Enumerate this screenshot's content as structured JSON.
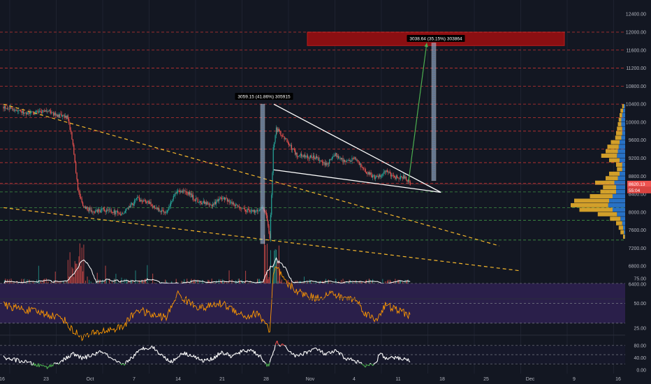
{
  "colors": {
    "background": "#131722",
    "up": "#26a69a",
    "down": "#ef5350",
    "wedge": "#ffffff",
    "trend_dashed": "#f5b72b",
    "resistance": "#e53935",
    "support": "#43a047",
    "target_zone": "#8b0f12",
    "rsi_line": "#ff9800",
    "rsi_band": "#2a1f4a",
    "osc_line": "#ffffff",
    "projection": "#4caf50",
    "vp_up": "#2b7bd6",
    "vp_down": "#f5b72b",
    "price_tag": "#ef5350"
  },
  "chart_data": [
    {
      "type": "candlestick",
      "timeframe_label": "price pane",
      "x_tick_labels": [
        "16",
        "23",
        "Oct",
        "7",
        "14",
        "21",
        "28",
        "Nov",
        "4",
        "11",
        "18",
        "25",
        "Dec",
        "9",
        "16"
      ],
      "y_tick_labels": [
        "12400.00",
        "12000.00",
        "11600.00",
        "11200.00",
        "10800.00",
        "10400.00",
        "10000.00",
        "9600.00",
        "9200.00",
        "8800.00",
        "8400.00",
        "8000.00",
        "7600.00",
        "7200.00",
        "6800.00",
        "6400.00"
      ],
      "ylim": [
        6200,
        12700
      ],
      "current_price": "8620.13",
      "countdown": "55:04",
      "key_path": [
        [
          0,
          10340
        ],
        [
          5,
          10200
        ],
        [
          9,
          10240
        ],
        [
          11,
          10150
        ],
        [
          13,
          10100
        ],
        [
          14,
          9500
        ],
        [
          15,
          8500
        ],
        [
          16,
          8150
        ],
        [
          18,
          8000
        ],
        [
          20,
          8050
        ],
        [
          24,
          7960
        ],
        [
          27,
          8300
        ],
        [
          29,
          8230
        ],
        [
          31,
          8050
        ],
        [
          33,
          8020
        ],
        [
          35,
          8500
        ],
        [
          37,
          8450
        ],
        [
          39,
          8250
        ],
        [
          42,
          8150
        ],
        [
          44,
          8330
        ],
        [
          47,
          8150
        ],
        [
          49,
          8040
        ],
        [
          51,
          8020
        ],
        [
          52,
          8120
        ],
        [
          53,
          7950
        ],
        [
          53.7,
          7420
        ],
        [
          54.4,
          9400
        ],
        [
          55,
          9850
        ],
        [
          57,
          9600
        ],
        [
          59,
          9280
        ],
        [
          61,
          9250
        ],
        [
          63,
          9200
        ],
        [
          65,
          9050
        ],
        [
          67,
          9280
        ],
        [
          69,
          9120
        ],
        [
          71,
          9180
        ],
        [
          73,
          8900
        ],
        [
          75,
          8760
        ],
        [
          77,
          8900
        ],
        [
          79,
          8780
        ],
        [
          81,
          8780
        ],
        [
          82,
          8630
        ]
      ],
      "wedge": {
        "upper": [
          [
            54.5,
            10400
          ],
          [
            88.2,
            8440
          ]
        ],
        "lower": [
          [
            54.5,
            8940
          ],
          [
            88.2,
            8440
          ]
        ],
        "measure_label": "3059.15 (41.86%) 305915",
        "measure_range": [
          7300,
          10400
        ]
      },
      "projection": {
        "from": [
          82.2,
          8700
        ],
        "to": [
          85.7,
          11760
        ],
        "measure_label": "3038.64 (35.15%) 303864",
        "measure_range": [
          8700,
          11760
        ],
        "target_zone": [
          11700,
          12000
        ]
      },
      "trendlines": [
        {
          "from": [
            0,
            10400
          ],
          "to": [
            100,
            7250
          ]
        },
        {
          "from": [
            0,
            8100
          ],
          "to": [
            104,
            6700
          ]
        }
      ],
      "resistance_levels": [
        12000,
        11600,
        11200,
        10800,
        10400,
        10100,
        9800,
        9400,
        9100,
        8640
      ],
      "support_levels": [
        8450,
        8100,
        7820,
        7380
      ],
      "volume_profile_levels": [
        {
          "price": 10350,
          "up": 3,
          "down": 2
        },
        {
          "price": 10250,
          "up": 4,
          "down": 3
        },
        {
          "price": 10150,
          "up": 5,
          "down": 3
        },
        {
          "price": 10050,
          "up": 6,
          "down": 3
        },
        {
          "price": 9950,
          "up": 6,
          "down": 4
        },
        {
          "price": 9850,
          "up": 5,
          "down": 6
        },
        {
          "price": 9750,
          "up": 5,
          "down": 7
        },
        {
          "price": 9650,
          "up": 6,
          "down": 7
        },
        {
          "price": 9550,
          "up": 8,
          "down": 10
        },
        {
          "price": 9450,
          "up": 9,
          "down": 13
        },
        {
          "price": 9350,
          "up": 10,
          "down": 14
        },
        {
          "price": 9250,
          "up": 11,
          "down": 18
        },
        {
          "price": 9150,
          "up": 8,
          "down": 12
        },
        {
          "price": 9050,
          "up": 5,
          "down": 7
        },
        {
          "price": 8950,
          "up": 5,
          "down": 6
        },
        {
          "price": 8850,
          "up": 8,
          "down": 12
        },
        {
          "price": 8750,
          "up": 10,
          "down": 14
        },
        {
          "price": 8650,
          "up": 14,
          "down": 22
        },
        {
          "price": 8550,
          "up": 12,
          "down": 15
        },
        {
          "price": 8450,
          "up": 12,
          "down": 18
        },
        {
          "price": 8350,
          "up": 16,
          "down": 26
        },
        {
          "price": 8250,
          "up": 20,
          "down": 40
        },
        {
          "price": 8150,
          "up": 21,
          "down": 43
        },
        {
          "price": 8050,
          "up": 16,
          "down": 38
        },
        {
          "price": 7950,
          "up": 11,
          "down": 22
        },
        {
          "price": 7850,
          "up": 7,
          "down": 12
        },
        {
          "price": 7750,
          "up": 5,
          "down": 7
        },
        {
          "price": 7650,
          "up": 4,
          "down": 5
        },
        {
          "price": 7550,
          "up": 3,
          "down": 4
        },
        {
          "price": 7450,
          "up": 2,
          "down": 2
        }
      ]
    },
    {
      "type": "line",
      "pane": "RSI",
      "ylim": [
        0,
        100
      ],
      "y_tick_labels": [
        "75.00",
        "50.00",
        "25.00"
      ],
      "band": [
        30,
        70
      ],
      "key_path": [
        [
          0,
          48
        ],
        [
          8,
          40
        ],
        [
          12,
          35
        ],
        [
          14,
          22
        ],
        [
          16,
          16
        ],
        [
          20,
          22
        ],
        [
          24,
          26
        ],
        [
          27,
          44
        ],
        [
          30,
          38
        ],
        [
          33,
          36
        ],
        [
          35,
          60
        ],
        [
          37,
          52
        ],
        [
          40,
          45
        ],
        [
          44,
          50
        ],
        [
          47,
          42
        ],
        [
          49,
          36
        ],
        [
          51,
          40
        ],
        [
          53,
          30
        ],
        [
          53.7,
          20
        ],
        [
          54.4,
          78
        ],
        [
          55,
          86
        ],
        [
          57,
          70
        ],
        [
          60,
          60
        ],
        [
          63,
          55
        ],
        [
          66,
          60
        ],
        [
          68,
          56
        ],
        [
          71,
          54
        ],
        [
          73,
          40
        ],
        [
          75,
          33
        ],
        [
          77,
          48
        ],
        [
          79,
          44
        ],
        [
          82,
          38
        ]
      ]
    },
    {
      "type": "line",
      "pane": "Stochastic RSI",
      "ylim": [
        0,
        100
      ],
      "y_tick_labels": [
        "80.00",
        "40.00",
        "0.00"
      ],
      "band": [
        20,
        80
      ],
      "key_path": [
        [
          0,
          40
        ],
        [
          4,
          28
        ],
        [
          7,
          15
        ],
        [
          9,
          10
        ],
        [
          12,
          32
        ],
        [
          14,
          52
        ],
        [
          16,
          38
        ],
        [
          18,
          50
        ],
        [
          20,
          60
        ],
        [
          22,
          32
        ],
        [
          24,
          16
        ],
        [
          26,
          42
        ],
        [
          28,
          70
        ],
        [
          30,
          76
        ],
        [
          32,
          46
        ],
        [
          34,
          26
        ],
        [
          36,
          56
        ],
        [
          38,
          48
        ],
        [
          40,
          30
        ],
        [
          42,
          36
        ],
        [
          44,
          58
        ],
        [
          46,
          44
        ],
        [
          48,
          60
        ],
        [
          50,
          66
        ],
        [
          52,
          40
        ],
        [
          53.5,
          10
        ],
        [
          55,
          90
        ],
        [
          57,
          72
        ],
        [
          59,
          44
        ],
        [
          61,
          58
        ],
        [
          63,
          70
        ],
        [
          65,
          50
        ],
        [
          67,
          62
        ],
        [
          69,
          38
        ],
        [
          71,
          30
        ],
        [
          73,
          12
        ],
        [
          75,
          18
        ],
        [
          76,
          60
        ],
        [
          77,
          36
        ],
        [
          79,
          40
        ],
        [
          81,
          36
        ],
        [
          82,
          30
        ]
      ]
    }
  ]
}
